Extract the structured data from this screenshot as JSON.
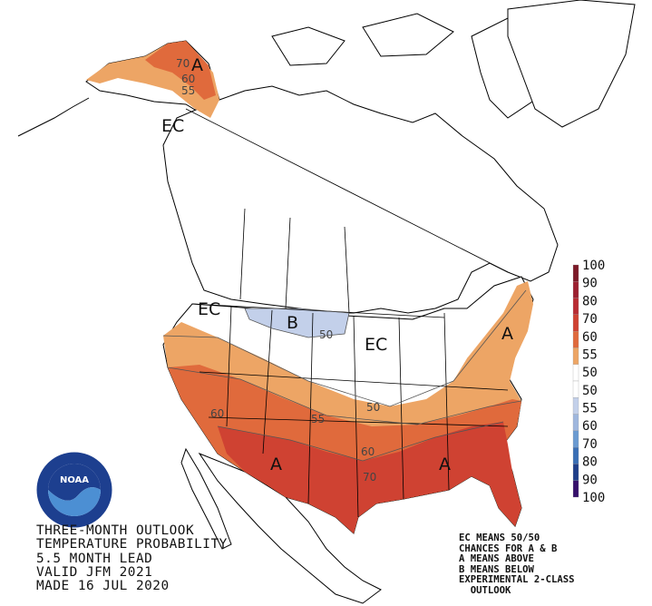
{
  "map_labels": {
    "ec_alaska": "EC",
    "ec_northwest": "EC",
    "ec_central": "EC",
    "above_alaska": "A",
    "above_northeast": "A",
    "above_southwest": "A",
    "above_southeast": "A",
    "below_northplains": "B"
  },
  "contour_labels": {
    "ak_70": "70",
    "ak_60": "60",
    "ak_55": "55",
    "c50_north": "50",
    "c50_south": "50",
    "c55": "55",
    "c60_west": "60",
    "c60_south": "60",
    "c70": "70"
  },
  "legend": {
    "labels": [
      "100",
      "90",
      "80",
      "70",
      "60",
      "55",
      "50",
      "50",
      "55",
      "60",
      "70",
      "80",
      "90",
      "100"
    ],
    "colors": {
      "above": [
        "#7d1a28",
        "#9c2030",
        "#b92c33",
        "#cf4232",
        "#e06a3c",
        "#eda565"
      ],
      "neutral": "#ffffff",
      "below": [
        "#c3d0ea",
        "#9fb7de",
        "#6b9bd1",
        "#3a6fb5",
        "#1f3f8a",
        "#36106b"
      ]
    }
  },
  "title_lines": [
    "THREE-MONTH OUTLOOK",
    "TEMPERATURE PROBABILITY",
    "5.5 MONTH LEAD",
    "VALID JFM 2021",
    "MADE 16 JUL 2020"
  ],
  "notes_lines": [
    "EC MEANS 50/50",
    "CHANCES FOR A & B",
    "A MEANS ABOVE",
    "B MEANS BELOW",
    "EXPERIMENTAL 2-CLASS",
    "  OUTLOOK"
  ],
  "logo": {
    "text": "NOAA",
    "ring_text": "NATIONAL OCEANIC AND ATMOSPHERIC ADMINISTRATION · U.S. DEPARTMENT OF COMMERCE"
  }
}
